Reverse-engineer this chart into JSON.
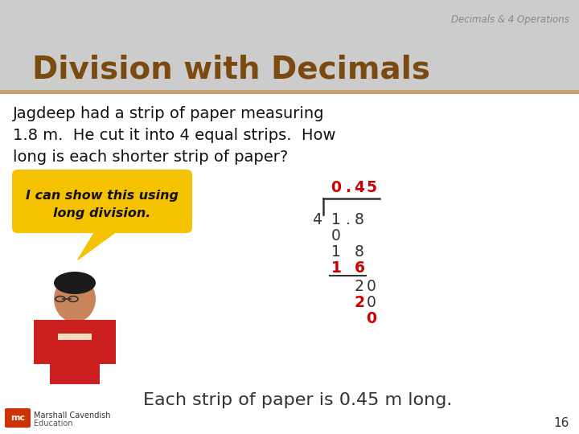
{
  "bg_color": "#ffffff",
  "header_bg": "#cccccc",
  "header_stripe": "#c8a070",
  "header_text": "Division with Decimals",
  "header_text_color": "#7a4a10",
  "subtitle_text": "Decimals & 4 Operations",
  "subtitle_color": "#888888",
  "body_text_line1": "Jagdeep had a strip of paper measuring",
  "body_text_line2": "1.8 m.  He cut it into 4 equal strips.  How",
  "body_text_line3": "long is each shorter strip of paper?",
  "body_text_color": "#111111",
  "bubble_text_line1": "I can show this using",
  "bubble_text_line2": "long division.",
  "bubble_bg": "#f5c200",
  "bubble_text_color": "#111111",
  "conclusion_text": "Each strip of paper is 0.45 m long.",
  "conclusion_color": "#333333",
  "page_number": "16",
  "page_number_color": "#333333",
  "division_color_red": "#cc0000",
  "division_color_black": "#333333",
  "footer_logo_color": "#cc3300",
  "footer_text1": "Marshall Cavendish",
  "footer_text2": "Education"
}
